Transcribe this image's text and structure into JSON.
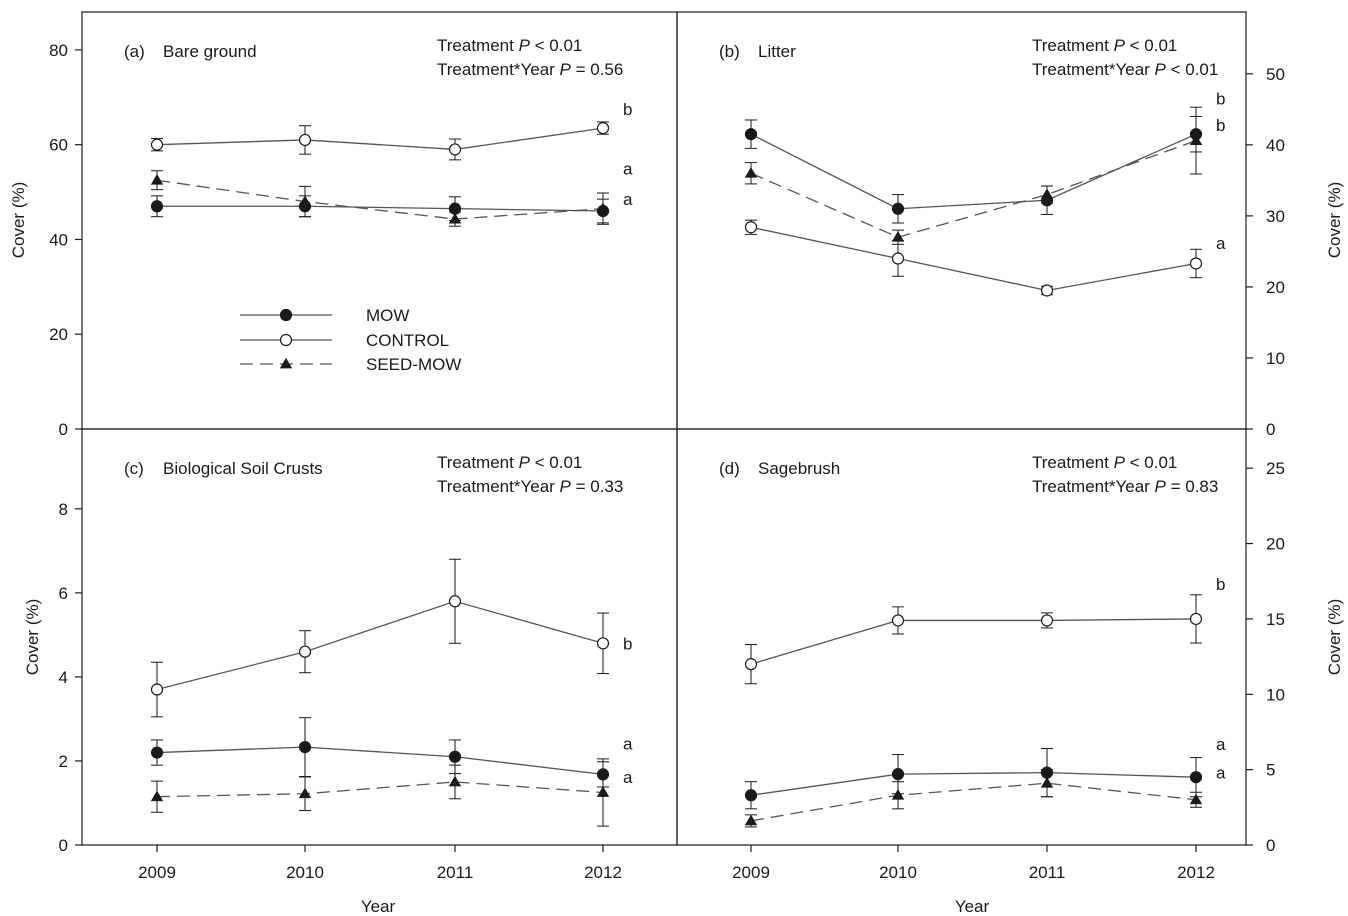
{
  "x_axis_label": "Year",
  "legend": {
    "placement": "center-left of panel (a)",
    "entries": [
      {
        "label": "MOW",
        "marker": "filled-circle",
        "line": "solid"
      },
      {
        "label": "CONTROL",
        "marker": "open-circle",
        "line": "solid"
      },
      {
        "label": "SEED-MOW",
        "marker": "filled-triangle",
        "line": "dashed"
      }
    ]
  },
  "colors": {
    "line": "#555555",
    "marker": "#1a1a1a",
    "axis": "#1a1a1a"
  },
  "chart_data": [
    {
      "type": "line",
      "panel": "(a)",
      "title": "Bare ground",
      "stats": [
        "Treatment P < 0.01",
        "Treatment*Year P = 0.56"
      ],
      "stat_parts": [
        [
          "Treatment ",
          "P",
          " < 0.01"
        ],
        [
          "Treatment*Year ",
          "P",
          " = 0.56"
        ]
      ],
      "xlabel": "Year",
      "ylabel": "Cover (%)",
      "y_axis_side": "left",
      "ylim": [
        0,
        88
      ],
      "yticks": [
        0,
        20,
        40,
        60,
        80
      ],
      "x": [
        2009,
        2010,
        2011,
        2012
      ],
      "xlim": [
        2008.5,
        2012.5
      ],
      "xticks_shown": false,
      "series": [
        {
          "name": "MOW",
          "values": [
            47,
            47,
            46.5,
            46
          ],
          "errors": [
            2.2,
            2.2,
            2.5,
            2.5
          ],
          "marker": "filled-circle",
          "dash": "solid"
        },
        {
          "name": "CONTROL",
          "values": [
            60,
            61,
            59,
            63.5
          ],
          "errors": [
            1.3,
            3,
            2.2,
            1.3
          ],
          "marker": "open-circle",
          "dash": "solid"
        },
        {
          "name": "SEED-MOW",
          "values": [
            52.5,
            48,
            44.3,
            46.5
          ],
          "errors": [
            2,
            3.2,
            1.5,
            3.3
          ],
          "marker": "filled-triangle",
          "dash": "dashed"
        }
      ],
      "annotations": [
        {
          "text": "b",
          "x": 2012,
          "y": 67.5
        },
        {
          "text": "a",
          "x": 2012,
          "y": 55
        },
        {
          "text": "a",
          "x": 2012,
          "y": 48.5
        }
      ]
    },
    {
      "type": "line",
      "panel": "(b)",
      "title": "Litter",
      "stats": [
        "Treatment P < 0.01",
        "Treatment*Year P < 0.01"
      ],
      "stat_parts": [
        [
          "Treatment ",
          "P",
          " < 0.01"
        ],
        [
          "Treatment*Year ",
          "P",
          " < 0.01"
        ]
      ],
      "xlabel": "Year",
      "ylabel": "Cover (%)",
      "y_axis_side": "right",
      "ylim": [
        0,
        58.7
      ],
      "yticks": [
        0,
        10,
        20,
        30,
        40,
        50
      ],
      "x": [
        2009,
        2010,
        2011,
        2012
      ],
      "xlim": [
        2008.5,
        2012.5
      ],
      "xticks_shown": false,
      "series": [
        {
          "name": "MOW",
          "values": [
            41.5,
            31,
            32.2,
            41.5
          ],
          "errors": [
            2,
            2,
            2,
            2.5
          ],
          "marker": "filled-circle",
          "dash": "solid"
        },
        {
          "name": "CONTROL",
          "values": [
            28.4,
            24,
            19.5,
            23.3
          ],
          "errors": [
            1,
            2.5,
            0.6,
            2
          ],
          "marker": "open-circle",
          "dash": "solid"
        },
        {
          "name": "SEED-MOW",
          "values": [
            36,
            27,
            33,
            40.6
          ],
          "errors": [
            1.5,
            1,
            1.2,
            4.7
          ],
          "marker": "filled-triangle",
          "dash": "dashed"
        }
      ],
      "annotations": [
        {
          "text": "b",
          "x": 2012,
          "y": 46.5
        },
        {
          "text": "b",
          "x": 2012,
          "y": 42.8
        },
        {
          "text": "a",
          "x": 2012,
          "y": 26.2
        }
      ]
    },
    {
      "type": "line",
      "panel": "(c)",
      "title": "Biological Soil Crusts",
      "stats": [
        "Treatment P < 0.01",
        "Treatment*Year P = 0.33"
      ],
      "stat_parts": [
        [
          "Treatment ",
          "P",
          " < 0.01"
        ],
        [
          "Treatment*Year ",
          "P",
          " = 0.33"
        ]
      ],
      "xlabel": "Year",
      "ylabel": "Cover (%)",
      "y_axis_side": "left",
      "ylim": [
        0,
        9.9
      ],
      "yticks": [
        0,
        2,
        4,
        6,
        8
      ],
      "x": [
        2009,
        2010,
        2011,
        2012
      ],
      "xlim": [
        2008.5,
        2012.5
      ],
      "xticks_shown": true,
      "series": [
        {
          "name": "MOW",
          "values": [
            2.2,
            2.33,
            2.1,
            1.68
          ],
          "errors": [
            0.3,
            0.7,
            0.4,
            0.3
          ],
          "marker": "filled-circle",
          "dash": "solid"
        },
        {
          "name": "CONTROL",
          "values": [
            3.7,
            4.6,
            5.8,
            4.8
          ],
          "errors": [
            0.65,
            0.5,
            1,
            0.72
          ],
          "marker": "open-circle",
          "dash": "solid"
        },
        {
          "name": "SEED-MOW",
          "values": [
            1.15,
            1.22,
            1.5,
            1.25
          ],
          "errors": [
            0.37,
            0.4,
            0.4,
            0.8
          ],
          "marker": "filled-triangle",
          "dash": "dashed"
        }
      ],
      "annotations": [
        {
          "text": "b",
          "x": 2012,
          "y": 4.8
        },
        {
          "text": "a",
          "x": 2012,
          "y": 2.42
        },
        {
          "text": "a",
          "x": 2012,
          "y": 1.62
        }
      ]
    },
    {
      "type": "line",
      "panel": "(d)",
      "title": "Sagebrush",
      "stats": [
        "Treatment P < 0.01",
        "Treatment*Year P = 0.83"
      ],
      "stat_parts": [
        [
          "Treatment ",
          "P",
          " < 0.01"
        ],
        [
          "Treatment*Year ",
          "P",
          " = 0.83"
        ]
      ],
      "xlabel": "Year",
      "ylabel": "Cover (%)",
      "y_axis_side": "right",
      "ylim": [
        0,
        27.6
      ],
      "yticks": [
        0,
        5,
        10,
        15,
        20,
        25
      ],
      "x": [
        2009,
        2010,
        2011,
        2012
      ],
      "xlim": [
        2008.5,
        2012.5
      ],
      "xticks_shown": true,
      "series": [
        {
          "name": "MOW",
          "values": [
            3.3,
            4.7,
            4.8,
            4.5
          ],
          "errors": [
            0.9,
            1.3,
            1.6,
            1.3
          ],
          "marker": "filled-circle",
          "dash": "solid"
        },
        {
          "name": "CONTROL",
          "values": [
            12,
            14.9,
            14.9,
            15
          ],
          "errors": [
            1.3,
            0.9,
            0.5,
            1.6
          ],
          "marker": "open-circle",
          "dash": "solid"
        },
        {
          "name": "SEED-MOW",
          "values": [
            1.6,
            3.3,
            4.1,
            3
          ],
          "errors": [
            0.4,
            0.9,
            0.9,
            0.5
          ],
          "marker": "filled-triangle",
          "dash": "dashed"
        }
      ],
      "annotations": [
        {
          "text": "b",
          "x": 2012,
          "y": 17.3
        },
        {
          "text": "a",
          "x": 2012,
          "y": 6.7
        },
        {
          "text": "a",
          "x": 2012,
          "y": 4.8
        }
      ]
    }
  ]
}
